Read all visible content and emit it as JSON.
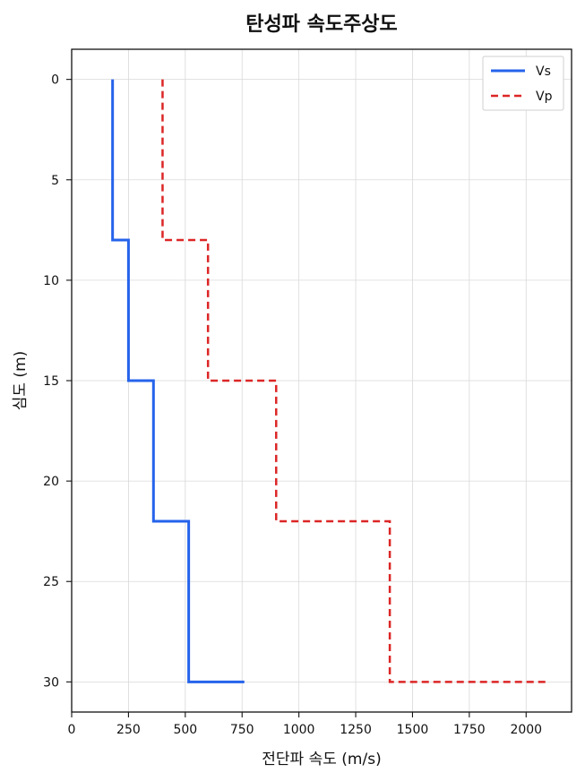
{
  "chart_data": {
    "type": "line",
    "title": "탄성파 속도주상도",
    "xlabel": "전단파 속도 (m/s)",
    "ylabel": "심도 (m)",
    "xlim": [
      0,
      2200
    ],
    "ylim": [
      31.5,
      -1.5
    ],
    "y_inverted": true,
    "xticks": [
      0,
      250,
      500,
      750,
      1000,
      1250,
      1500,
      1750,
      2000
    ],
    "yticks": [
      0,
      5,
      10,
      15,
      20,
      25,
      30
    ],
    "grid": true,
    "legend_position": "top-right",
    "series": [
      {
        "name": "Vs",
        "color": "#2563eb",
        "style": "solid",
        "x": [
          180,
          180,
          250,
          250,
          360,
          360,
          515,
          515,
          760
        ],
        "y": [
          0,
          8,
          8,
          15,
          15,
          22,
          22,
          30,
          30
        ]
      },
      {
        "name": "Vp",
        "color": "#dc2626",
        "style": "dashed",
        "x": [
          400,
          400,
          600,
          600,
          900,
          900,
          1400,
          1400,
          2100
        ],
        "y": [
          0,
          8,
          8,
          15,
          15,
          22,
          22,
          30,
          30
        ]
      }
    ]
  }
}
